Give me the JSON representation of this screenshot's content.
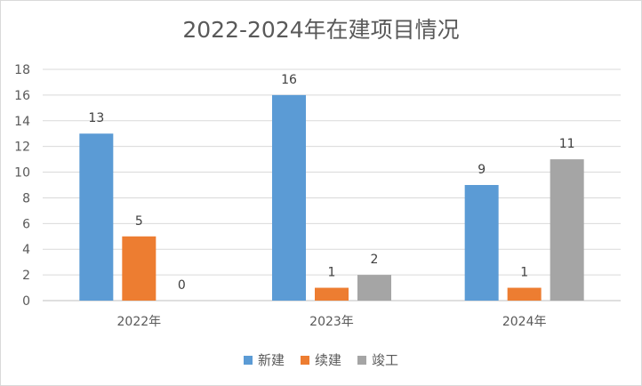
{
  "chart_data": {
    "type": "bar",
    "title": "2022-2024年在建项目情况",
    "categories": [
      "2022年",
      "2023年",
      "2024年"
    ],
    "series": [
      {
        "name": "新建",
        "values": [
          13,
          16,
          9
        ],
        "color": "#5b9bd5"
      },
      {
        "name": "续建",
        "values": [
          5,
          1,
          1
        ],
        "color": "#ed7d31"
      },
      {
        "name": "竣工",
        "values": [
          0,
          2,
          11
        ],
        "color": "#a5a5a5"
      }
    ],
    "ylim": [
      0,
      18
    ],
    "yticks": [
      0,
      2,
      4,
      6,
      8,
      10,
      12,
      14,
      16,
      18
    ],
    "grid": true,
    "legend": "bottom"
  }
}
